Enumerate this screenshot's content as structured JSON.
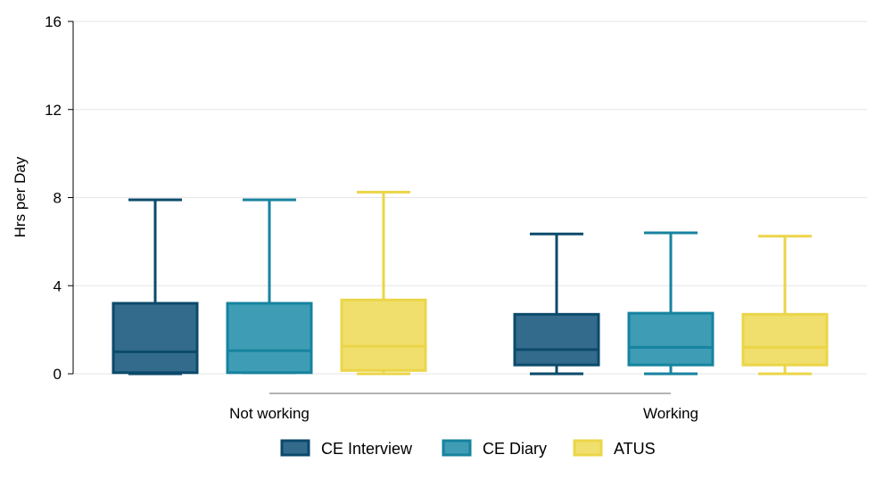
{
  "chart_data": {
    "type": "box",
    "ylabel": "Hrs per Day",
    "ylim": [
      0,
      16
    ],
    "yticks": [
      0,
      4,
      8,
      12,
      16
    ],
    "grid": true,
    "legend_position": "bottom",
    "categories": [
      "Not working",
      "Working"
    ],
    "series": [
      {
        "name": "CE Interview",
        "fill": "#336B8C",
        "stroke": "#0B4A6B",
        "boxes": [
          {
            "whisker_low": 0,
            "q1": 0.05,
            "median": 1.0,
            "q3": 3.2,
            "whisker_high": 7.9
          },
          {
            "whisker_low": 0,
            "q1": 0.4,
            "median": 1.1,
            "q3": 2.7,
            "whisker_high": 6.35
          }
        ]
      },
      {
        "name": "CE Diary",
        "fill": "#3E9DB5",
        "stroke": "#17839F",
        "boxes": [
          {
            "whisker_low": 0.05,
            "q1": 0.05,
            "median": 1.05,
            "q3": 3.2,
            "whisker_high": 7.9
          },
          {
            "whisker_low": 0,
            "q1": 0.4,
            "median": 1.2,
            "q3": 2.75,
            "whisker_high": 6.4
          }
        ]
      },
      {
        "name": "ATUS",
        "fill": "#F0DF6C",
        "stroke": "#EBD548",
        "boxes": [
          {
            "whisker_low": 0,
            "q1": 0.15,
            "median": 1.25,
            "q3": 3.35,
            "whisker_high": 8.25
          },
          {
            "whisker_low": 0,
            "q1": 0.4,
            "median": 1.2,
            "q3": 2.7,
            "whisker_high": 6.25
          }
        ]
      }
    ]
  }
}
